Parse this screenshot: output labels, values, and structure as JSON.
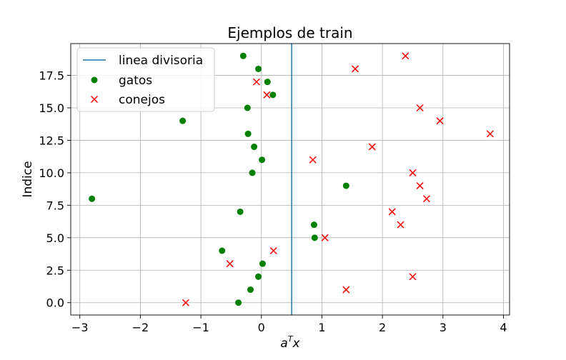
{
  "chart_data": {
    "type": "scatter",
    "title": "Ejemplos de train",
    "xlabel": "a",
    "xlabel_sup": "T",
    "xlabel_suffix": "x",
    "ylabel": "Indice",
    "xlim": [
      -3.15,
      4.1
    ],
    "ylim": [
      -0.95,
      19.95
    ],
    "xticks": [
      -3,
      -2,
      -1,
      0,
      1,
      2,
      3,
      4
    ],
    "xtick_labels": [
      "−3",
      "−2",
      "−1",
      "0",
      "1",
      "2",
      "3",
      "4"
    ],
    "yticks": [
      0,
      2.5,
      5,
      7.5,
      10,
      12.5,
      15,
      17.5
    ],
    "ytick_labels": [
      "0.0",
      "2.5",
      "5.0",
      "7.5",
      "10.0",
      "12.5",
      "15.0",
      "17.5"
    ],
    "grid": true,
    "legend_position": "upper-left",
    "divider": {
      "name": "linea divisoria",
      "x": 0.5,
      "color": "#1f77b4"
    },
    "series": [
      {
        "name": "gatos",
        "marker": "circle",
        "color": "#008000",
        "x": [
          -0.38,
          -0.18,
          -0.05,
          0.02,
          -0.65,
          0.88,
          0.87,
          -0.35,
          -2.8,
          1.4,
          -0.15,
          0.01,
          -0.12,
          -0.22,
          -1.3,
          -0.23,
          0.19,
          0.1,
          -0.05,
          -0.3
        ],
        "y": [
          0,
          1,
          2,
          3,
          4,
          5,
          6,
          7,
          8,
          9,
          10,
          11,
          12,
          13,
          14,
          15,
          16,
          17,
          18,
          19
        ]
      },
      {
        "name": "conejos",
        "marker": "x",
        "color": "#ff0000",
        "x": [
          -1.25,
          1.4,
          2.5,
          -0.52,
          0.2,
          1.05,
          2.3,
          2.16,
          2.73,
          2.62,
          2.5,
          0.85,
          1.83,
          3.78,
          2.95,
          2.62,
          0.09,
          -0.08,
          1.55,
          2.38
        ],
        "y": [
          0,
          1,
          2,
          3,
          4,
          5,
          6,
          7,
          8,
          9,
          10,
          11,
          12,
          13,
          14,
          15,
          16,
          17,
          18,
          19
        ]
      }
    ]
  }
}
